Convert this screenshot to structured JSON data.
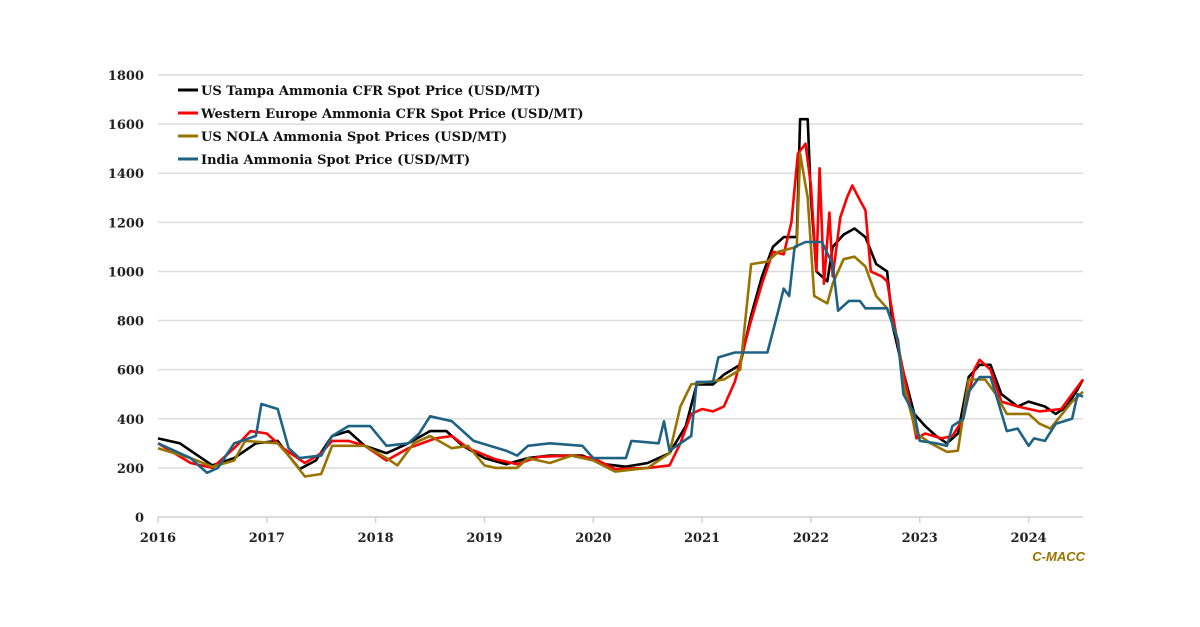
{
  "chart_data": {
    "type": "line",
    "title": "",
    "xlabel": "",
    "ylabel": "",
    "xlim": [
      2016,
      2024.5
    ],
    "ylim": [
      0,
      1800
    ],
    "x_ticks": [
      "2016",
      "2017",
      "2018",
      "2019",
      "2020",
      "2021",
      "2022",
      "2023",
      "2024"
    ],
    "y_ticks": [
      "0",
      "200",
      "400",
      "600",
      "800",
      "1000",
      "1200",
      "1400",
      "1600",
      "1800"
    ],
    "grid": "horizontal",
    "legend_position": "top-left",
    "source_label": "C-MACC",
    "series": [
      {
        "name": "US Tampa Ammonia CFR Spot Price (USD/MT)",
        "color": "#000000",
        "points": [
          [
            2016,
            320
          ],
          [
            2016.2,
            300
          ],
          [
            2016.4,
            240
          ],
          [
            2016.5,
            210
          ],
          [
            2016.7,
            240
          ],
          [
            2016.9,
            300
          ],
          [
            2017.1,
            310
          ],
          [
            2017.2,
            250
          ],
          [
            2017.3,
            195
          ],
          [
            2017.45,
            230
          ],
          [
            2017.6,
            330
          ],
          [
            2017.75,
            350
          ],
          [
            2017.9,
            290
          ],
          [
            2018.1,
            260
          ],
          [
            2018.3,
            300
          ],
          [
            2018.5,
            350
          ],
          [
            2018.65,
            350
          ],
          [
            2018.8,
            290
          ],
          [
            2019,
            240
          ],
          [
            2019.2,
            215
          ],
          [
            2019.4,
            240
          ],
          [
            2019.6,
            250
          ],
          [
            2019.9,
            250
          ],
          [
            2020.1,
            215
          ],
          [
            2020.3,
            205
          ],
          [
            2020.5,
            220
          ],
          [
            2020.7,
            260
          ],
          [
            2020.85,
            370
          ],
          [
            2020.95,
            540
          ],
          [
            2021.1,
            540
          ],
          [
            2021.2,
            580
          ],
          [
            2021.35,
            620
          ],
          [
            2021.45,
            820
          ],
          [
            2021.55,
            980
          ],
          [
            2021.65,
            1100
          ],
          [
            2021.75,
            1140
          ],
          [
            2021.87,
            1140
          ],
          [
            2021.9,
            1620
          ],
          [
            2021.97,
            1620
          ],
          [
            2022.0,
            1300
          ],
          [
            2022.05,
            1000
          ],
          [
            2022.15,
            960
          ],
          [
            2022.2,
            1100
          ],
          [
            2022.3,
            1150
          ],
          [
            2022.4,
            1175
          ],
          [
            2022.5,
            1140
          ],
          [
            2022.6,
            1030
          ],
          [
            2022.7,
            1000
          ],
          [
            2022.75,
            780
          ],
          [
            2022.85,
            590
          ],
          [
            2022.95,
            420
          ],
          [
            2023.05,
            370
          ],
          [
            2023.15,
            330
          ],
          [
            2023.25,
            300
          ],
          [
            2023.35,
            340
          ],
          [
            2023.45,
            570
          ],
          [
            2023.55,
            620
          ],
          [
            2023.65,
            620
          ],
          [
            2023.75,
            500
          ],
          [
            2023.9,
            450
          ],
          [
            2024.0,
            470
          ],
          [
            2024.15,
            450
          ],
          [
            2024.25,
            420
          ],
          [
            2024.35,
            450
          ],
          [
            2024.45,
            520
          ],
          [
            2024.5,
            560
          ]
        ]
      },
      {
        "name": "Western Europe Ammonia CFR Spot Price (USD/MT)",
        "color": "#ff0000",
        "points": [
          [
            2016,
            300
          ],
          [
            2016.3,
            220
          ],
          [
            2016.5,
            200
          ],
          [
            2016.7,
            280
          ],
          [
            2016.85,
            350
          ],
          [
            2017,
            340
          ],
          [
            2017.15,
            280
          ],
          [
            2017.35,
            220
          ],
          [
            2017.5,
            260
          ],
          [
            2017.6,
            310
          ],
          [
            2017.75,
            310
          ],
          [
            2017.9,
            290
          ],
          [
            2018.1,
            230
          ],
          [
            2018.3,
            280
          ],
          [
            2018.55,
            320
          ],
          [
            2018.7,
            330
          ],
          [
            2018.85,
            280
          ],
          [
            2019.1,
            235
          ],
          [
            2019.3,
            215
          ],
          [
            2019.5,
            245
          ],
          [
            2019.8,
            250
          ],
          [
            2020.0,
            240
          ],
          [
            2020.2,
            195
          ],
          [
            2020.5,
            200
          ],
          [
            2020.7,
            210
          ],
          [
            2020.8,
            300
          ],
          [
            2020.9,
            420
          ],
          [
            2021.0,
            440
          ],
          [
            2021.1,
            430
          ],
          [
            2021.2,
            450
          ],
          [
            2021.3,
            550
          ],
          [
            2021.45,
            800
          ],
          [
            2021.55,
            950
          ],
          [
            2021.65,
            1080
          ],
          [
            2021.75,
            1070
          ],
          [
            2021.82,
            1200
          ],
          [
            2021.88,
            1480
          ],
          [
            2021.95,
            1520
          ],
          [
            2022.0,
            1350
          ],
          [
            2022.05,
            1000
          ],
          [
            2022.08,
            1420
          ],
          [
            2022.12,
            950
          ],
          [
            2022.17,
            1240
          ],
          [
            2022.2,
            980
          ],
          [
            2022.27,
            1220
          ],
          [
            2022.33,
            1300
          ],
          [
            2022.38,
            1350
          ],
          [
            2022.45,
            1290
          ],
          [
            2022.5,
            1250
          ],
          [
            2022.55,
            1000
          ],
          [
            2022.65,
            980
          ],
          [
            2022.7,
            960
          ],
          [
            2022.8,
            700
          ],
          [
            2022.9,
            480
          ],
          [
            2022.97,
            320
          ],
          [
            2023.05,
            340
          ],
          [
            2023.2,
            320
          ],
          [
            2023.3,
            330
          ],
          [
            2023.4,
            400
          ],
          [
            2023.5,
            600
          ],
          [
            2023.55,
            640
          ],
          [
            2023.65,
            600
          ],
          [
            2023.75,
            470
          ],
          [
            2023.9,
            450
          ],
          [
            2024.1,
            430
          ],
          [
            2024.3,
            440
          ],
          [
            2024.4,
            500
          ],
          [
            2024.5,
            560
          ]
        ]
      },
      {
        "name": "US NOLA Ammonia Spot Prices (USD/MT)",
        "color": "#987300",
        "points": [
          [
            2016,
            280
          ],
          [
            2016.3,
            240
          ],
          [
            2016.5,
            205
          ],
          [
            2016.7,
            230
          ],
          [
            2016.8,
            310
          ],
          [
            2017.1,
            300
          ],
          [
            2017.2,
            250
          ],
          [
            2017.35,
            165
          ],
          [
            2017.5,
            175
          ],
          [
            2017.6,
            290
          ],
          [
            2017.9,
            290
          ],
          [
            2018.1,
            240
          ],
          [
            2018.2,
            210
          ],
          [
            2018.35,
            300
          ],
          [
            2018.5,
            330
          ],
          [
            2018.7,
            280
          ],
          [
            2018.85,
            290
          ],
          [
            2019,
            210
          ],
          [
            2019.1,
            200
          ],
          [
            2019.3,
            200
          ],
          [
            2019.4,
            240
          ],
          [
            2019.6,
            220
          ],
          [
            2019.8,
            250
          ],
          [
            2020.0,
            230
          ],
          [
            2020.2,
            185
          ],
          [
            2020.5,
            200
          ],
          [
            2020.7,
            260
          ],
          [
            2020.8,
            450
          ],
          [
            2020.9,
            540
          ],
          [
            2021.2,
            560
          ],
          [
            2021.35,
            600
          ],
          [
            2021.45,
            1030
          ],
          [
            2021.6,
            1040
          ],
          [
            2021.7,
            1080
          ],
          [
            2021.87,
            1100
          ],
          [
            2021.9,
            1480
          ],
          [
            2021.97,
            1300
          ],
          [
            2022.03,
            900
          ],
          [
            2022.15,
            870
          ],
          [
            2022.2,
            950
          ],
          [
            2022.3,
            1050
          ],
          [
            2022.4,
            1060
          ],
          [
            2022.5,
            1020
          ],
          [
            2022.6,
            900
          ],
          [
            2022.7,
            850
          ],
          [
            2022.8,
            720
          ],
          [
            2022.85,
            540
          ],
          [
            2022.97,
            340
          ],
          [
            2023.1,
            300
          ],
          [
            2023.25,
            265
          ],
          [
            2023.35,
            270
          ],
          [
            2023.45,
            560
          ],
          [
            2023.6,
            560
          ],
          [
            2023.7,
            500
          ],
          [
            2023.8,
            420
          ],
          [
            2024,
            420
          ],
          [
            2024.1,
            380
          ],
          [
            2024.2,
            360
          ],
          [
            2024.4,
            470
          ],
          [
            2024.5,
            510
          ]
        ]
      },
      {
        "name": "India Ammonia Spot Price (USD/MT)",
        "color": "#1f6283",
        "points": [
          [
            2016,
            300
          ],
          [
            2016.3,
            240
          ],
          [
            2016.45,
            180
          ],
          [
            2016.55,
            200
          ],
          [
            2016.7,
            300
          ],
          [
            2016.9,
            330
          ],
          [
            2016.95,
            460
          ],
          [
            2017.1,
            440
          ],
          [
            2017.2,
            280
          ],
          [
            2017.3,
            240
          ],
          [
            2017.5,
            250
          ],
          [
            2017.6,
            330
          ],
          [
            2017.75,
            370
          ],
          [
            2017.95,
            370
          ],
          [
            2018.1,
            290
          ],
          [
            2018.3,
            300
          ],
          [
            2018.4,
            340
          ],
          [
            2018.5,
            410
          ],
          [
            2018.7,
            390
          ],
          [
            2018.9,
            310
          ],
          [
            2019.2,
            270
          ],
          [
            2019.3,
            250
          ],
          [
            2019.4,
            290
          ],
          [
            2019.6,
            300
          ],
          [
            2019.9,
            290
          ],
          [
            2020.0,
            240
          ],
          [
            2020.3,
            240
          ],
          [
            2020.35,
            310
          ],
          [
            2020.6,
            300
          ],
          [
            2020.65,
            390
          ],
          [
            2020.7,
            270
          ],
          [
            2020.9,
            330
          ],
          [
            2020.95,
            550
          ],
          [
            2021.1,
            550
          ],
          [
            2021.15,
            650
          ],
          [
            2021.3,
            670
          ],
          [
            2021.6,
            670
          ],
          [
            2021.7,
            840
          ],
          [
            2021.75,
            930
          ],
          [
            2021.8,
            900
          ],
          [
            2021.85,
            1100
          ],
          [
            2021.95,
            1120
          ],
          [
            2022.1,
            1120
          ],
          [
            2022.2,
            1030
          ],
          [
            2022.25,
            840
          ],
          [
            2022.35,
            880
          ],
          [
            2022.45,
            880
          ],
          [
            2022.5,
            850
          ],
          [
            2022.7,
            850
          ],
          [
            2022.8,
            720
          ],
          [
            2022.85,
            500
          ],
          [
            2022.95,
            420
          ],
          [
            2023.0,
            310
          ],
          [
            2023.15,
            300
          ],
          [
            2023.25,
            290
          ],
          [
            2023.3,
            370
          ],
          [
            2023.4,
            400
          ],
          [
            2023.45,
            510
          ],
          [
            2023.55,
            570
          ],
          [
            2023.65,
            570
          ],
          [
            2023.7,
            500
          ],
          [
            2023.8,
            350
          ],
          [
            2023.9,
            360
          ],
          [
            2024.0,
            290
          ],
          [
            2024.05,
            320
          ],
          [
            2024.15,
            310
          ],
          [
            2024.25,
            380
          ],
          [
            2024.4,
            400
          ],
          [
            2024.45,
            500
          ],
          [
            2024.5,
            490
          ]
        ]
      }
    ]
  }
}
